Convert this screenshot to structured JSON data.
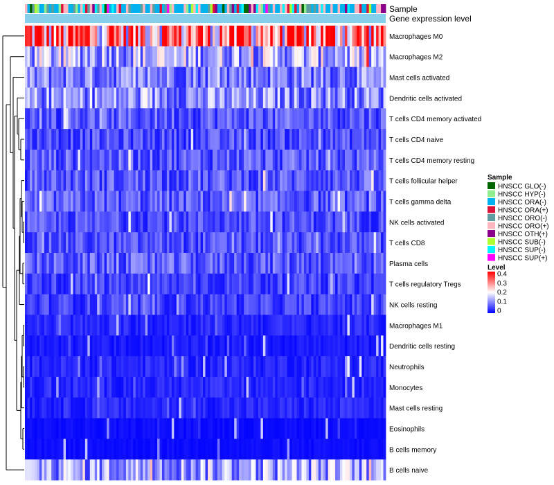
{
  "chart_data": {
    "type": "heatmap",
    "annotation_tracks": [
      "Sample",
      "Gene expression level"
    ],
    "rows": [
      {
        "label": "Macrophages M0",
        "mean": 0.3
      },
      {
        "label": "Macrophages M2",
        "mean": 0.14
      },
      {
        "label": "Mast cells activated",
        "mean": 0.1
      },
      {
        "label": "Dendritic cells activated",
        "mean": 0.11
      },
      {
        "label": "T cells CD4 memory activated",
        "mean": 0.07
      },
      {
        "label": "T cells CD4 naive",
        "mean": 0.06
      },
      {
        "label": "T cells CD4 memory resting",
        "mean": 0.07
      },
      {
        "label": "T cells follicular helper",
        "mean": 0.07
      },
      {
        "label": "T cells gamma delta",
        "mean": 0.07
      },
      {
        "label": "NK cells activated",
        "mean": 0.06
      },
      {
        "label": "T cells CD8",
        "mean": 0.06
      },
      {
        "label": "Plasma cells",
        "mean": 0.07
      },
      {
        "label": "T cells regulatory  Tregs",
        "mean": 0.05
      },
      {
        "label": "NK cells resting",
        "mean": 0.05
      },
      {
        "label": "Macrophages M1",
        "mean": 0.03
      },
      {
        "label": "Dendritic cells resting",
        "mean": 0.02
      },
      {
        "label": "Neutrophils",
        "mean": 0.03
      },
      {
        "label": "Monocytes",
        "mean": 0.03
      },
      {
        "label": "Mast cells resting",
        "mean": 0.03
      },
      {
        "label": "Eosinophils",
        "mean": 0.01
      },
      {
        "label": "B cells memory",
        "mean": 0.01
      },
      {
        "label": "B cells naive",
        "mean": 0.13
      }
    ],
    "n_samples": 150,
    "legend_sample": {
      "title": "Sample",
      "items": [
        {
          "label": "HNSCC GLO(-)",
          "color": "#006400"
        },
        {
          "label": "HNSCC HYP(-)",
          "color": "#90ee90"
        },
        {
          "label": "HNSCC ORA(-)",
          "color": "#00b2ee"
        },
        {
          "label": "HNSCC ORA(+)",
          "color": "#dc143c"
        },
        {
          "label": "HNSCC ORO(-)",
          "color": "#5f9ea0"
        },
        {
          "label": "HNSCC ORO(+)",
          "color": "#ffb6c1"
        },
        {
          "label": "HNSCC OTH(+)",
          "color": "#8b008b"
        },
        {
          "label": "HNSCC SUB(-)",
          "color": "#adff2f"
        },
        {
          "label": "HNSCC SUP(-)",
          "color": "#00f5ff"
        },
        {
          "label": "HNSCC SUP(+)",
          "color": "#ff00ff"
        }
      ]
    },
    "legend_level": {
      "title": "Level",
      "ticks": [
        "0.4",
        "0.3",
        "0.2",
        "0.1",
        "0"
      ],
      "range": [
        0,
        0.4
      ],
      "colors": {
        "low": "#0000ff",
        "mid": "#ffffff",
        "high": "#ff0000"
      }
    },
    "expression_level_color": "#87ceeb"
  }
}
